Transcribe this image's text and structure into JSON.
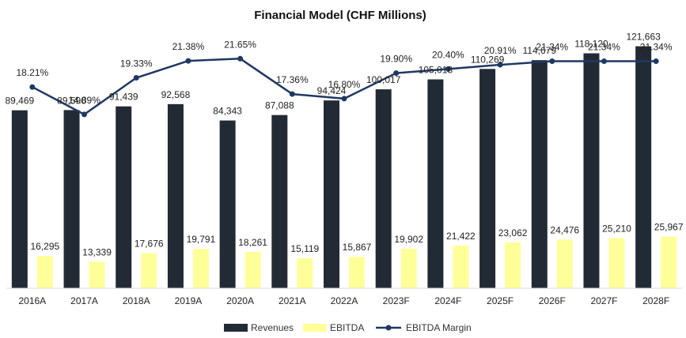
{
  "chart_data": {
    "type": "bar",
    "title": "Financial Model (CHF Millions)",
    "categories": [
      "2016A",
      "2017A",
      "2018A",
      "2019A",
      "2020A",
      "2021A",
      "2022A",
      "2023F",
      "2024F",
      "2025F",
      "2026F",
      "2027F",
      "2028F"
    ],
    "series": [
      {
        "name": "Revenues",
        "type": "bar",
        "color": "#222a35",
        "values": [
          89469,
          89590,
          91439,
          92568,
          84343,
          87088,
          94424,
          100017,
          105018,
          110269,
          114679,
          118120,
          121663
        ],
        "labels": [
          "89,469",
          "89,590",
          "91,439",
          "92,568",
          "84,343",
          "87,088",
          "94,424",
          "100,017",
          "105,018",
          "110,269",
          "114,679",
          "118,120",
          "121,663"
        ]
      },
      {
        "name": "EBITDA",
        "type": "bar",
        "color": "#ffff99",
        "values": [
          16295,
          13339,
          17676,
          19791,
          18261,
          15119,
          15867,
          19902,
          21422,
          23062,
          24476,
          25210,
          25967
        ],
        "labels": [
          "16,295",
          "13,339",
          "17,676",
          "19,791",
          "18,261",
          "15,119",
          "15,867",
          "19,902",
          "21,422",
          "23,062",
          "24,476",
          "25,210",
          "25,967"
        ]
      },
      {
        "name": "EBITDA Margin",
        "type": "line",
        "color": "#1f3864",
        "values": [
          18.21,
          14.89,
          19.33,
          21.38,
          21.65,
          17.36,
          16.8,
          19.9,
          20.4,
          20.91,
          21.34,
          21.34,
          21.34
        ],
        "labels": [
          "18.21%",
          "14.89%",
          "19.33%",
          "21.38%",
          "21.65%",
          "17.36%",
          "16.80%",
          "19.90%",
          "20.40%",
          "20.91%",
          "21.34%",
          "21.34%",
          "21.34%"
        ]
      }
    ],
    "ylim": [
      0,
      135000
    ],
    "y2lim": [
      12,
      23.5
    ],
    "grid": false,
    "legend_position": "bottom"
  }
}
